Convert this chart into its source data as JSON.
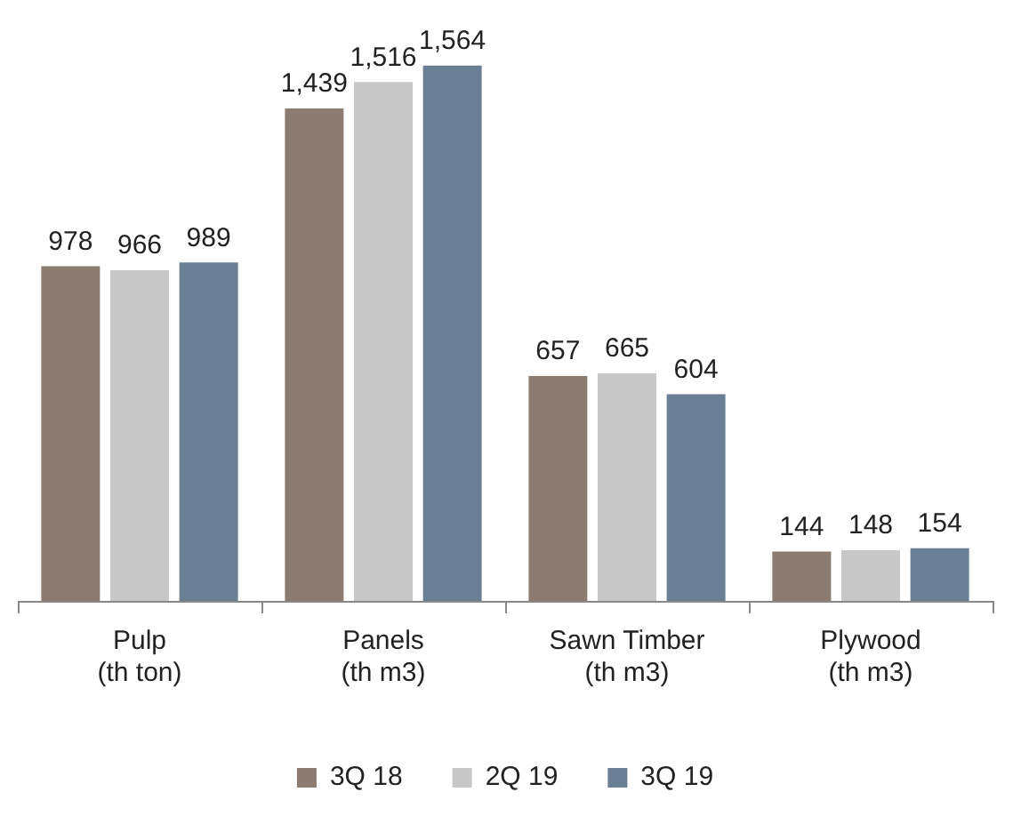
{
  "chart_data": {
    "type": "bar",
    "categories": [
      "Pulp\n(th ton)",
      "Panels\n(th m3)",
      "Sawn Timber\n(th m3)",
      "Plywood\n(th m3)"
    ],
    "series": [
      {
        "name": "3Q 18",
        "color": "#8c7b70",
        "values": [
          978,
          1439,
          657,
          144
        ],
        "value_labels": [
          "978",
          "1,439",
          "657",
          "144"
        ]
      },
      {
        "name": "2Q 19",
        "color": "#c8c8c8",
        "values": [
          966,
          1516,
          665,
          148
        ],
        "value_labels": [
          "966",
          "1,516",
          "665",
          "148"
        ]
      },
      {
        "name": "3Q 19",
        "color": "#6a7f94",
        "values": [
          989,
          1564,
          604,
          154
        ],
        "value_labels": [
          "989",
          "1,564",
          "604",
          "154"
        ]
      }
    ],
    "legend": "bottom",
    "grid": false
  }
}
